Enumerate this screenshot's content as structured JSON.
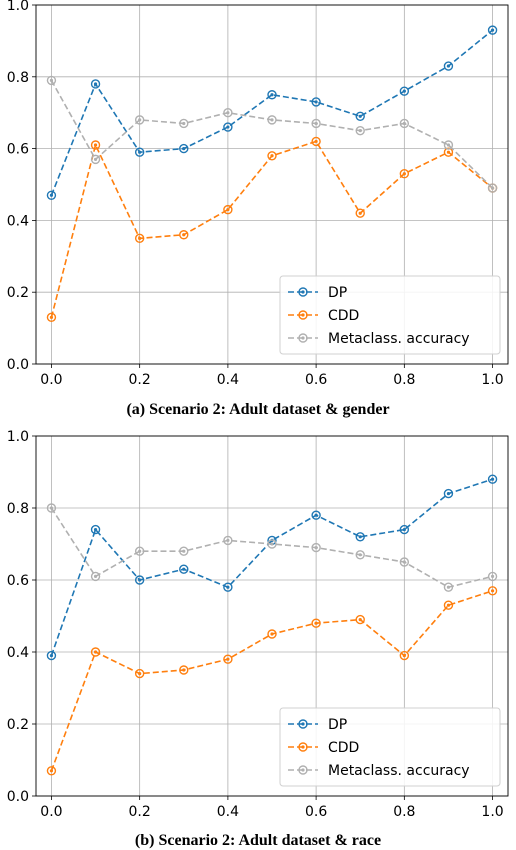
{
  "chart_data": [
    {
      "type": "line",
      "caption": "(a) Scenario 2: Adult dataset & gender",
      "x": [
        0.0,
        0.1,
        0.2,
        0.3,
        0.4,
        0.5,
        0.6,
        0.7,
        0.8,
        0.9,
        1.0
      ],
      "xticks": [
        "0.0",
        "0.2",
        "0.4",
        "0.6",
        "0.8",
        "1.0"
      ],
      "yticks": [
        "0.0",
        "0.2",
        "0.4",
        "0.6",
        "0.8",
        "1.0"
      ],
      "xlim": [
        -0.035,
        1.035
      ],
      "ylim": [
        0.0,
        1.0
      ],
      "grid": true,
      "legend_position": "lower-right",
      "series": [
        {
          "name": "DP",
          "color": "#1f77b4",
          "values": [
            0.47,
            0.78,
            0.59,
            0.6,
            0.66,
            0.75,
            0.73,
            0.69,
            0.76,
            0.83,
            0.93
          ]
        },
        {
          "name": "CDD",
          "color": "#ff7f0e",
          "values": [
            0.13,
            0.61,
            0.35,
            0.36,
            0.43,
            0.58,
            0.62,
            0.42,
            0.53,
            0.59,
            0.49
          ]
        },
        {
          "name": "Metaclass. accuracy",
          "color": "#b0b0b0",
          "values": [
            0.79,
            0.57,
            0.68,
            0.67,
            0.7,
            0.68,
            0.67,
            0.65,
            0.67,
            0.61,
            0.49
          ]
        }
      ]
    },
    {
      "type": "line",
      "caption": "(b) Scenario 2: Adult dataset & race",
      "x": [
        0.0,
        0.1,
        0.2,
        0.3,
        0.4,
        0.5,
        0.6,
        0.7,
        0.8,
        0.9,
        1.0
      ],
      "xticks": [
        "0.0",
        "0.2",
        "0.4",
        "0.6",
        "0.8",
        "1.0"
      ],
      "yticks": [
        "0.0",
        "0.2",
        "0.4",
        "0.6",
        "0.8",
        "1.0"
      ],
      "xlim": [
        -0.035,
        1.035
      ],
      "ylim": [
        0.0,
        1.0
      ],
      "grid": true,
      "legend_position": "lower-right",
      "series": [
        {
          "name": "DP",
          "color": "#1f77b4",
          "values": [
            0.39,
            0.74,
            0.6,
            0.63,
            0.58,
            0.71,
            0.78,
            0.72,
            0.74,
            0.84,
            0.88
          ]
        },
        {
          "name": "CDD",
          "color": "#ff7f0e",
          "values": [
            0.07,
            0.4,
            0.34,
            0.35,
            0.38,
            0.45,
            0.48,
            0.49,
            0.39,
            0.53,
            0.57
          ]
        },
        {
          "name": "Metaclass. accuracy",
          "color": "#b0b0b0",
          "values": [
            0.8,
            0.61,
            0.68,
            0.68,
            0.71,
            0.7,
            0.69,
            0.67,
            0.65,
            0.58,
            0.61
          ]
        }
      ]
    }
  ]
}
